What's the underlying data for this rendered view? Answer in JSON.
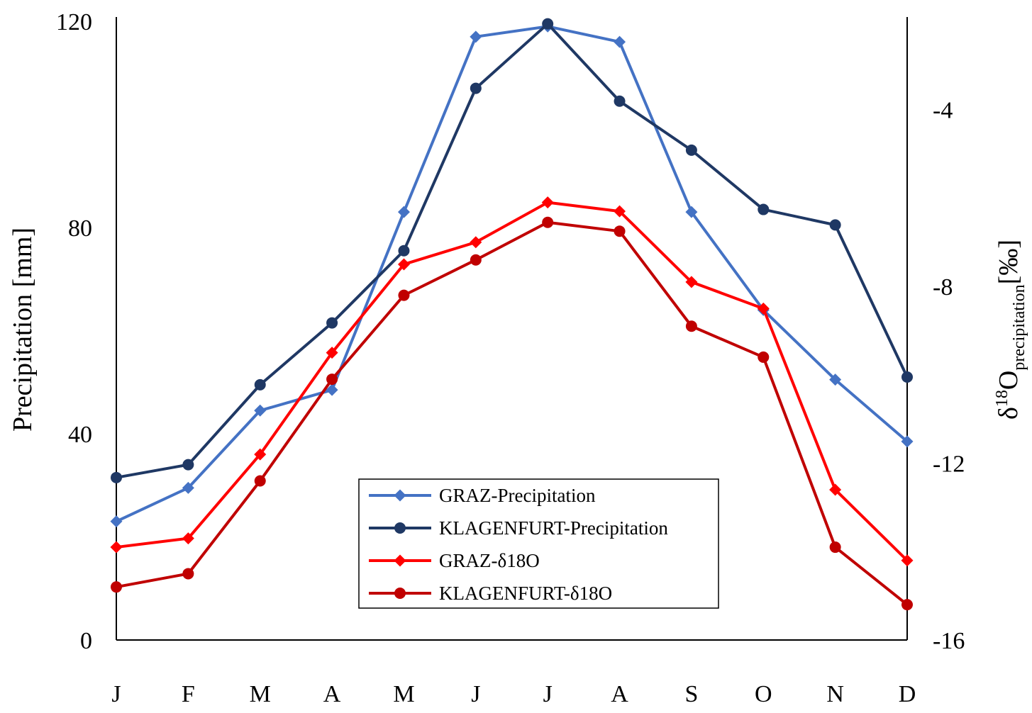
{
  "chart_data": {
    "type": "line",
    "categories": [
      "J",
      "F",
      "M",
      "A",
      "M",
      "J",
      "J",
      "A",
      "S",
      "O",
      "N",
      "D"
    ],
    "left_axis": {
      "label": "Precipitation [mm]",
      "lim": [
        0,
        120
      ],
      "ticks": [
        0,
        40,
        80,
        120
      ]
    },
    "right_axis": {
      "label_main": "δ",
      "label_sup": "18",
      "label_o": "O",
      "label_sub": "precipitation",
      "label_unit": "[‰]",
      "lim": [
        -16,
        -2
      ],
      "ticks": [
        -4,
        -8,
        -12,
        -16
      ]
    },
    "grid": false,
    "legend_position": "bottom-center",
    "series": [
      {
        "name": "GRAZ-Precipitation",
        "axis": "left",
        "marker": "diamond",
        "color": "#4472C4",
        "values": [
          23,
          29.5,
          44.5,
          48.5,
          83,
          117,
          119,
          116,
          83,
          64,
          50.5,
          38.5
        ]
      },
      {
        "name": "KLAGENFURT-Precipitation",
        "axis": "left",
        "marker": "circle",
        "color": "#1F3864",
        "values": [
          31.5,
          34,
          49.5,
          61.5,
          75.5,
          107,
          119.5,
          104.5,
          95,
          83.5,
          80.5,
          51
        ]
      },
      {
        "name": "GRAZ-δ18O",
        "axis": "right",
        "marker": "diamond",
        "color": "#FF0000",
        "values": [
          -13.9,
          -13.7,
          -11.8,
          -9.5,
          -7.5,
          -7.0,
          -6.1,
          -6.3,
          -7.9,
          -8.5,
          -12.6,
          -14.2
        ]
      },
      {
        "name": "KLAGENFURT-δ18O",
        "axis": "right",
        "marker": "circle",
        "color": "#C00000",
        "values": [
          -14.8,
          -14.5,
          -12.4,
          -10.1,
          -8.2,
          -7.4,
          -6.55,
          -6.75,
          -8.9,
          -9.6,
          -13.9,
          -15.2
        ]
      }
    ]
  }
}
